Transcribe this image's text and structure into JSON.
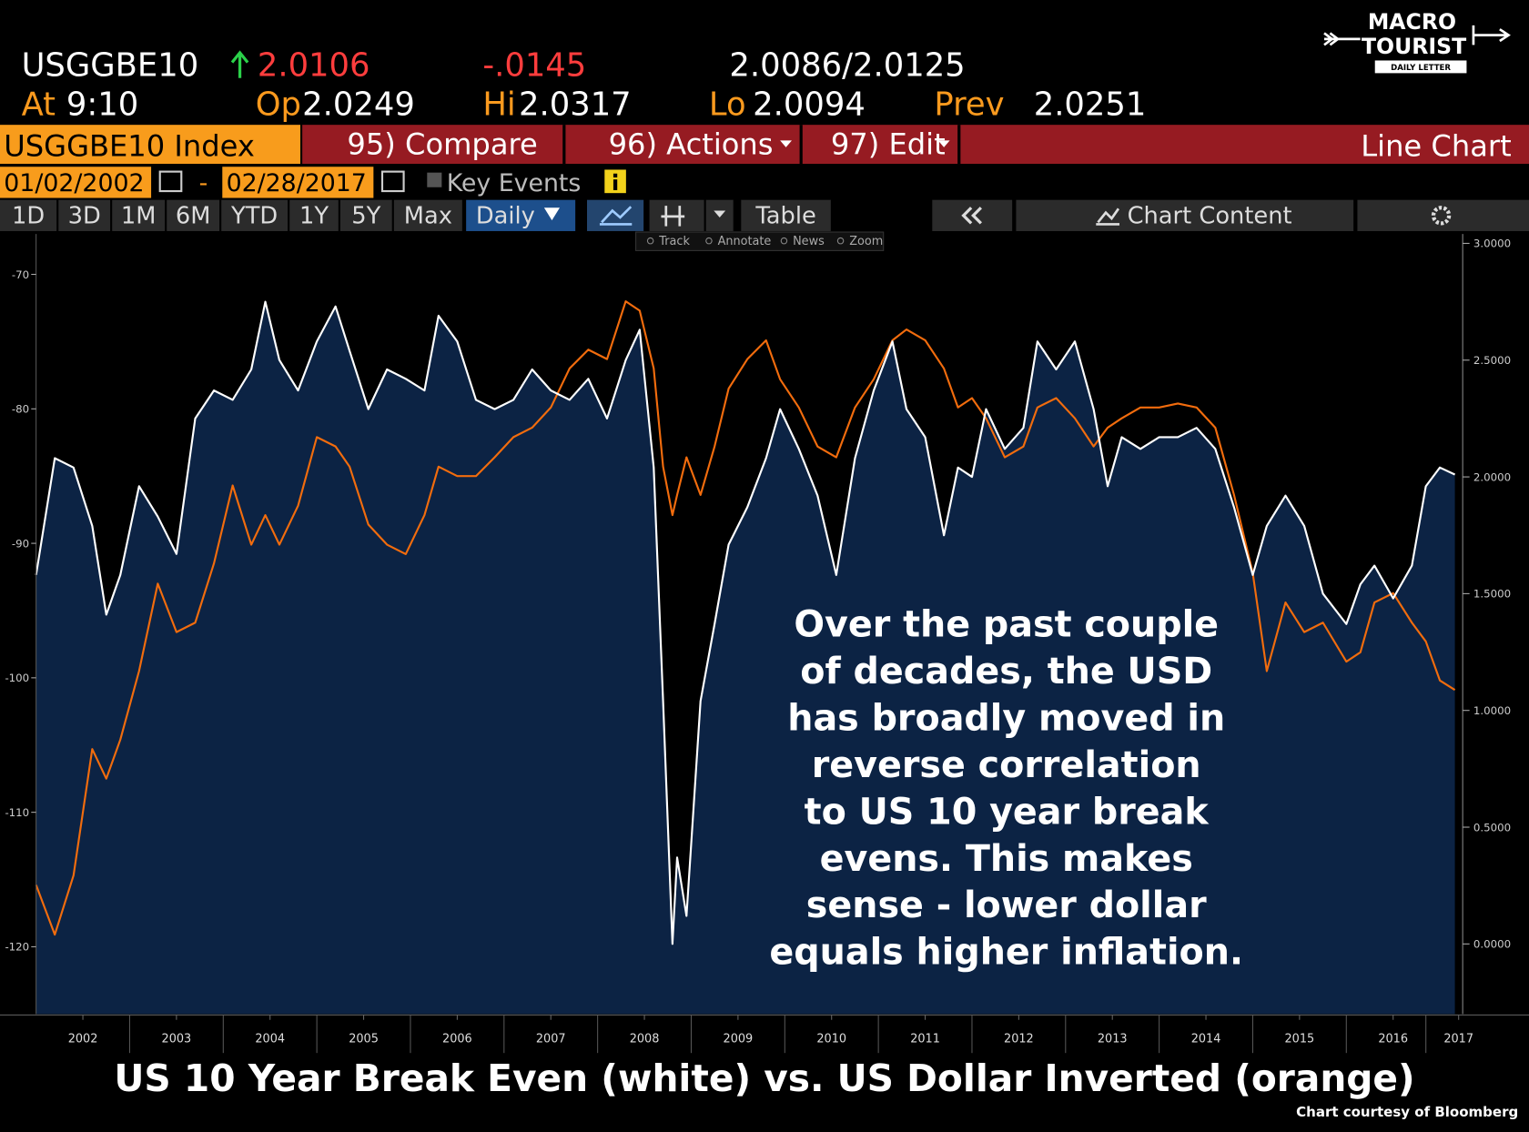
{
  "header": {
    "ticker": "USGGBE10",
    "last": "2.0106",
    "change": "-.0145",
    "bid_ask": "2.0086/2.0125",
    "at_label": "At",
    "time": "9:10",
    "open_label": "Op",
    "open": "2.0249",
    "high_label": "Hi",
    "high": "2.0317",
    "low_label": "Lo",
    "low": "2.0094",
    "prev_label": "Prev",
    "prev": "2.0251"
  },
  "toolbar": {
    "security": "USGGBE10 Index",
    "compare": "95) Compare",
    "actions": "96) Actions",
    "edit": "97) Edit",
    "chart_type": "Line Chart",
    "start_date": "01/02/2002",
    "date_sep": "-",
    "end_date": "02/28/2017",
    "key_events": "Key Events",
    "ranges": [
      "1D",
      "3D",
      "1M",
      "6M",
      "YTD",
      "1Y",
      "5Y",
      "Max"
    ],
    "period": "Daily",
    "table": "Table",
    "chart_content": "Chart Content",
    "tools": [
      "Track",
      "Annotate",
      "News",
      "Zoom"
    ]
  },
  "logo": {
    "line1": "MACRO",
    "line2": "TOURIST",
    "line3": "DAILY LETTER"
  },
  "chart_data": {
    "type": "line",
    "title": "US 10 Year Break Even (white) vs. US Dollar Inverted (orange)",
    "source": "Chart courtesy of Bloomberg",
    "annotation": [
      "Over the past couple",
      "of decades, the USD",
      "has broadly moved in",
      "reverse correlation",
      "to US 10 year break",
      "evens.  This makes",
      "sense - lower dollar",
      "equals higher inflation."
    ],
    "x": [
      2002.0,
      2002.2,
      2002.4,
      2002.6,
      2002.75,
      2002.9,
      2003.1,
      2003.3,
      2003.5,
      2003.7,
      2003.9,
      2004.1,
      2004.3,
      2004.45,
      2004.6,
      2004.8,
      2005.0,
      2005.2,
      2005.35,
      2005.55,
      2005.75,
      2005.95,
      2006.15,
      2006.3,
      2006.5,
      2006.7,
      2006.9,
      2007.1,
      2007.3,
      2007.5,
      2007.7,
      2007.9,
      2008.1,
      2008.3,
      2008.45,
      2008.6,
      2008.7,
      2008.8,
      2008.85,
      2008.95,
      2009.1,
      2009.25,
      2009.4,
      2009.6,
      2009.8,
      2009.95,
      2010.15,
      2010.35,
      2010.55,
      2010.75,
      2010.95,
      2011.15,
      2011.3,
      2011.5,
      2011.7,
      2011.85,
      2012.0,
      2012.15,
      2012.35,
      2012.55,
      2012.7,
      2012.9,
      2013.1,
      2013.3,
      2013.45,
      2013.6,
      2013.8,
      2014.0,
      2014.2,
      2014.4,
      2014.6,
      2014.8,
      2015.0,
      2015.15,
      2015.35,
      2015.55,
      2015.75,
      2016.0,
      2016.15,
      2016.3,
      2016.5,
      2016.7,
      2016.85,
      2017.0,
      2017.16
    ],
    "series": [
      {
        "color": "#ffffff",
        "fill": "#0c2344",
        "axis": "y2",
        "values": [
          1.58,
          2.08,
          2.04,
          1.79,
          1.41,
          1.58,
          1.96,
          1.83,
          1.67,
          2.25,
          2.37,
          2.33,
          2.46,
          2.75,
          2.5,
          2.37,
          2.58,
          2.73,
          2.54,
          2.29,
          2.46,
          2.42,
          2.37,
          2.69,
          2.58,
          2.33,
          2.29,
          2.33,
          2.46,
          2.37,
          2.33,
          2.42,
          2.25,
          2.5,
          2.63,
          2.04,
          1.04,
          0.0,
          0.37,
          0.12,
          1.04,
          1.37,
          1.71,
          1.87,
          2.08,
          2.29,
          2.12,
          1.92,
          1.58,
          2.08,
          2.37,
          2.58,
          2.29,
          2.17,
          1.75,
          2.04,
          2.0,
          2.29,
          2.12,
          2.21,
          2.58,
          2.46,
          2.58,
          2.29,
          1.96,
          2.17,
          2.12,
          2.17,
          2.17,
          2.21,
          2.12,
          1.87,
          1.58,
          1.79,
          1.92,
          1.79,
          1.5,
          1.37,
          1.54,
          1.62,
          1.48,
          1.62,
          1.96,
          2.04,
          2.01
        ]
      },
      {
        "color": "#f26c0d",
        "values": [
          -115.4,
          -119.1,
          -114.7,
          -105.3,
          -107.5,
          -104.6,
          -99.5,
          -93.0,
          -96.6,
          -95.9,
          -91.5,
          -85.7,
          -90.1,
          -87.9,
          -90.1,
          -87.2,
          -82.1,
          -82.8,
          -84.3,
          -88.6,
          -90.1,
          -90.8,
          -87.9,
          -84.3,
          -85.0,
          -85.0,
          -83.6,
          -82.1,
          -81.4,
          -79.9,
          -77.0,
          -75.6,
          -76.3,
          -72.0,
          -72.7,
          -77.0,
          -84.3,
          -87.9,
          -86.4,
          -83.6,
          -86.4,
          -82.8,
          -78.5,
          -76.3,
          -74.9,
          -77.8,
          -79.9,
          -82.8,
          -83.6,
          -79.9,
          -77.8,
          -74.9,
          -74.1,
          -74.9,
          -77.0,
          -79.9,
          -79.2,
          -80.7,
          -83.6,
          -82.8,
          -79.9,
          -79.2,
          -80.7,
          -82.8,
          -81.4,
          -80.7,
          -79.9,
          -79.9,
          -79.6,
          -79.9,
          -81.4,
          -86.4,
          -92.2,
          -99.5,
          -94.4,
          -96.6,
          -95.9,
          -98.8,
          -98.1,
          -94.4,
          -93.7,
          -95.9,
          -97.3,
          -100.2,
          -100.9
        ]
      }
    ],
    "xlim": [
      2002.0,
      2017.16
    ],
    "xticks": [
      {
        "value": 2002.5,
        "label": "2002"
      },
      {
        "value": 2003.5,
        "label": "2003"
      },
      {
        "value": 2004.5,
        "label": "2004"
      },
      {
        "value": 2005.5,
        "label": "2005"
      },
      {
        "value": 2006.5,
        "label": "2006"
      },
      {
        "value": 2007.5,
        "label": "2007"
      },
      {
        "value": 2008.5,
        "label": "2008"
      },
      {
        "value": 2009.5,
        "label": "2009"
      },
      {
        "value": 2010.5,
        "label": "2010"
      },
      {
        "value": 2011.5,
        "label": "2011"
      },
      {
        "value": 2012.5,
        "label": "2012"
      },
      {
        "value": 2013.5,
        "label": "2013"
      },
      {
        "value": 2014.5,
        "label": "2014"
      },
      {
        "value": 2015.5,
        "label": "2015"
      },
      {
        "value": 2016.5,
        "label": "2016"
      },
      {
        "value": 2017.2,
        "label": "2017"
      }
    ],
    "ylim": [
      -125,
      -67
    ],
    "yticks": [
      -70,
      -80,
      -90,
      -100,
      -110,
      -120
    ],
    "y2lim": [
      -0.3,
      3.04
    ],
    "y2ticks": [
      {
        "value": 3,
        "label": "3.0000"
      },
      {
        "value": 2.5,
        "label": "2.5000"
      },
      {
        "value": 2,
        "label": "2.0000"
      },
      {
        "value": 1.5,
        "label": "1.5000"
      },
      {
        "value": 1,
        "label": "1.0000"
      },
      {
        "value": 0.5,
        "label": "0.5000"
      },
      {
        "value": 0,
        "label": "0.0000"
      }
    ]
  }
}
